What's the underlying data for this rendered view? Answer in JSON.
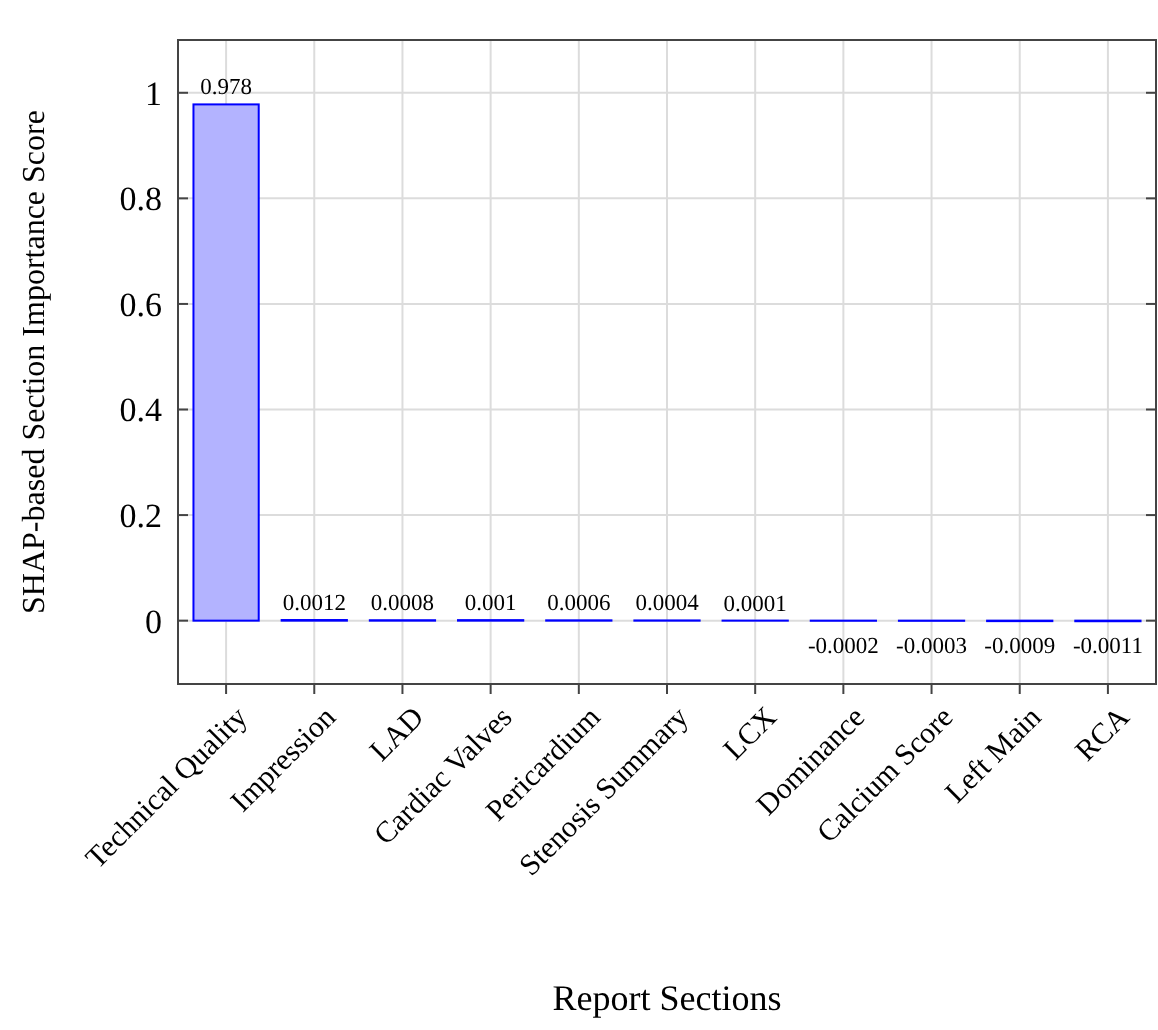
{
  "chart_data": {
    "type": "bar",
    "xlabel": "Report Sections",
    "ylabel": "SHAP-based Section Importance Score",
    "categories": [
      "Technical Quality",
      "Impression",
      "LAD",
      "Cardiac Valves",
      "Pericardium",
      "Stenosis Summary",
      "LCX",
      "Dominance",
      "Calcium Score",
      "Left Main",
      "RCA"
    ],
    "values": [
      0.978,
      0.0012,
      0.0008,
      0.001,
      0.0006,
      0.0004,
      0.0001,
      -0.0002,
      -0.0003,
      -0.0009,
      -0.0011
    ],
    "color": "#b3b3ff",
    "ylim": [
      -0.12,
      1.1
    ],
    "yticks": [
      0,
      0.2,
      0.4,
      0.6,
      0.8,
      1
    ],
    "grid": true,
    "data_labels": true
  }
}
